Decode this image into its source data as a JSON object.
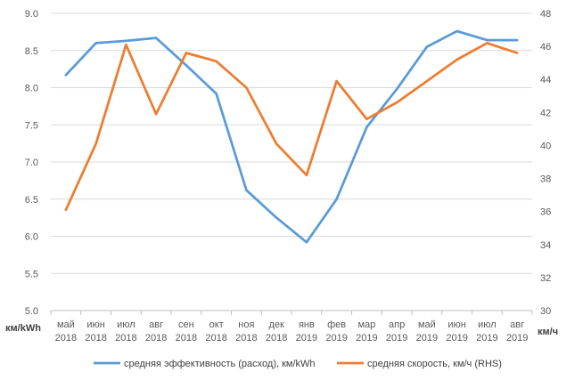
{
  "chart_data": {
    "type": "line",
    "categories": [
      [
        "май",
        "2018"
      ],
      [
        "июн",
        "2018"
      ],
      [
        "июл",
        "2018"
      ],
      [
        "авг",
        "2018"
      ],
      [
        "сен",
        "2018"
      ],
      [
        "окт",
        "2018"
      ],
      [
        "ноя",
        "2018"
      ],
      [
        "дек",
        "2018"
      ],
      [
        "янв",
        "2019"
      ],
      [
        "фев",
        "2019"
      ],
      [
        "мар",
        "2019"
      ],
      [
        "апр",
        "2019"
      ],
      [
        "май",
        "2019"
      ],
      [
        "июн",
        "2019"
      ],
      [
        "июл",
        "2019"
      ],
      [
        "авг",
        "2019"
      ]
    ],
    "left_axis": {
      "unit_label": "км/kWh",
      "range": [
        5.0,
        9.0
      ],
      "ticks": [
        "5.0",
        "5.5",
        "6.0",
        "6.5",
        "7.0",
        "7.5",
        "8.0",
        "8.5",
        "9.0"
      ]
    },
    "right_axis": {
      "unit_label": "км/ч",
      "range": [
        30,
        48
      ],
      "ticks": [
        "30",
        "32",
        "34",
        "36",
        "38",
        "40",
        "42",
        "44",
        "46",
        "48"
      ]
    },
    "series": [
      {
        "name": "средняя эффективность (расход), км/kWh",
        "axis": "left",
        "color": "#5B9BD5",
        "values": [
          8.17,
          8.6,
          8.63,
          8.67,
          8.3,
          7.92,
          6.62,
          6.25,
          5.92,
          6.5,
          7.47,
          7.98,
          8.55,
          8.76,
          8.64,
          8.64
        ]
      },
      {
        "name": "средняя скорость, км/ч (RHS)",
        "axis": "right",
        "color": "#ED7D31",
        "values": [
          36.1,
          40.1,
          46.1,
          41.9,
          45.6,
          45.1,
          43.5,
          40.1,
          38.2,
          43.9,
          41.6,
          42.6,
          43.9,
          45.2,
          46.2,
          45.6
        ]
      }
    ],
    "grid": "horizontal",
    "legend_position": "bottom"
  }
}
